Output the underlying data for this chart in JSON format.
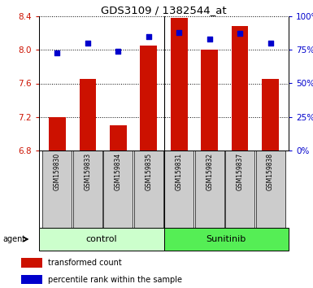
{
  "title": "GDS3109 / 1382544_at",
  "samples": [
    "GSM159830",
    "GSM159833",
    "GSM159834",
    "GSM159835",
    "GSM159831",
    "GSM159832",
    "GSM159837",
    "GSM159838"
  ],
  "groups": [
    "control",
    "control",
    "control",
    "control",
    "Sunitinib",
    "Sunitinib",
    "Sunitinib",
    "Sunitinib"
  ],
  "transformed_count": [
    7.2,
    7.65,
    7.1,
    8.05,
    8.38,
    8.0,
    8.28,
    7.65
  ],
  "percentile_rank": [
    73,
    80,
    74,
    85,
    88,
    83,
    87,
    80
  ],
  "ylim_left": [
    6.8,
    8.4
  ],
  "ylim_right": [
    0,
    100
  ],
  "yticks_left": [
    6.8,
    7.2,
    7.6,
    8.0,
    8.4
  ],
  "yticks_right": [
    0,
    25,
    50,
    75,
    100
  ],
  "bar_color": "#cc1100",
  "dot_color": "#0000cc",
  "control_bg": "#ccffcc",
  "sunitinib_bg": "#55ee55",
  "label_bg": "#cccccc",
  "group_divider": 4,
  "bar_width": 0.55,
  "base_value": 6.8,
  "legend_red_label": "transformed count",
  "legend_blue_label": "percentile rank within the sample",
  "agent_label": "agent",
  "group_labels": [
    "control",
    "Sunitinib"
  ]
}
